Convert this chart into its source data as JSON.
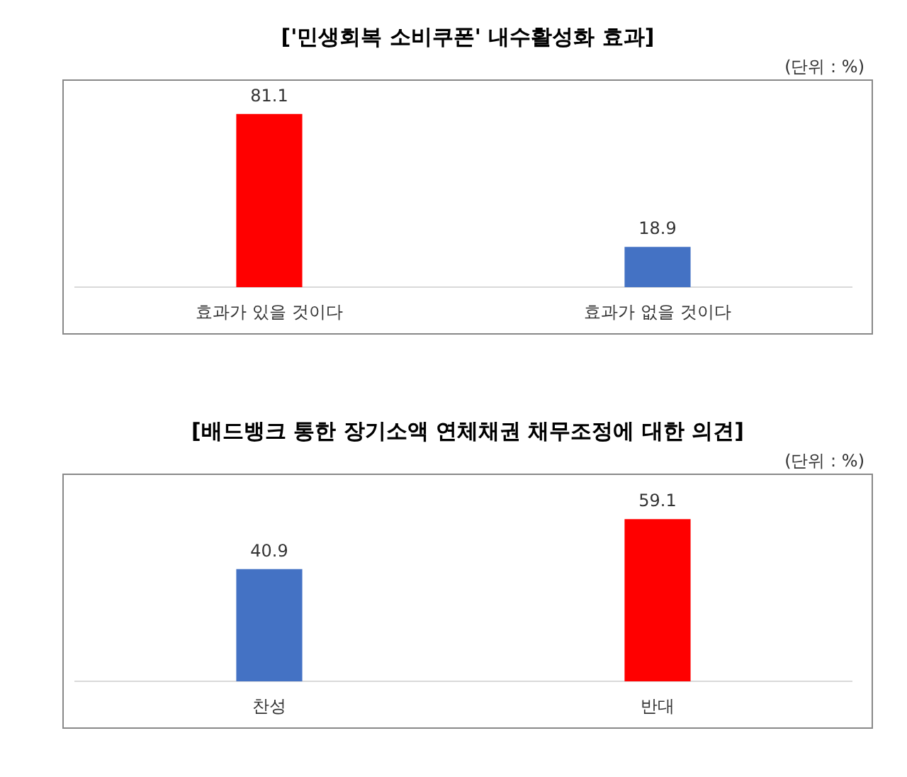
{
  "chart_data": [
    {
      "type": "bar",
      "title": "['민생회복 소비쿠폰' 내수활성화 효과]",
      "subtitle": "(단위 : %)",
      "categories": [
        "효과가 있을 것이다",
        "효과가 없을 것이다"
      ],
      "values": [
        81.1,
        18.9
      ],
      "colors": [
        "#ff0000",
        "#4472c4"
      ],
      "data_labels": true
    },
    {
      "type": "bar",
      "title": "[배드뱅크 통한 장기소액 연체채권 채무조정에 대한 의견]",
      "subtitle": "(단위 : %)",
      "categories": [
        "찬성",
        "반대"
      ],
      "values": [
        40.9,
        59.1
      ],
      "colors": [
        "#4472c4",
        "#ff0000"
      ],
      "data_labels": true
    }
  ]
}
